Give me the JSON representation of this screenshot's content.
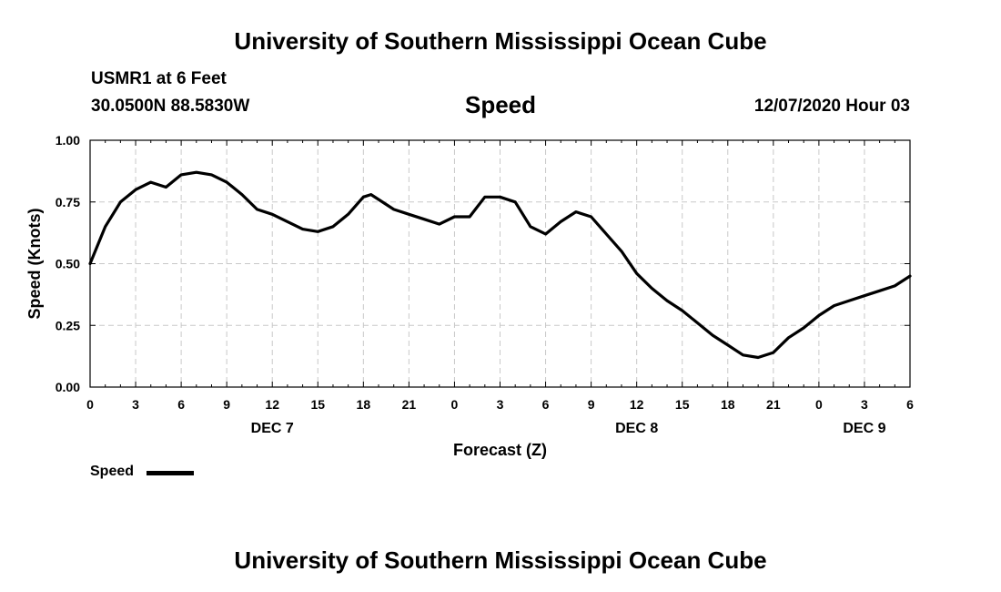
{
  "page": {
    "top_title": "University of Southern Mississippi Ocean Cube",
    "bottom_title": "University of Southern Mississippi Ocean Cube",
    "station": "USMR1 at 6 Feet",
    "coords": "30.0500N 88.5830W",
    "timestamp": "12/07/2020 Hour 03"
  },
  "chart_data": {
    "type": "line",
    "title": "Speed",
    "xlabel": "Forecast (Z)",
    "ylabel": "Speed (Knots)",
    "xlim": [
      0,
      54
    ],
    "ylim": [
      0,
      1.0
    ],
    "x_ticks": [
      0,
      3,
      6,
      9,
      12,
      15,
      18,
      21,
      24,
      27,
      30,
      33,
      36,
      39,
      42,
      45,
      48,
      51,
      54
    ],
    "x_tick_labels": [
      "0",
      "3",
      "6",
      "9",
      "12",
      "15",
      "18",
      "21",
      "0",
      "3",
      "6",
      "9",
      "12",
      "15",
      "18",
      "21",
      "0",
      "3",
      "6"
    ],
    "date_labels": [
      {
        "x": 12,
        "label": "DEC 7"
      },
      {
        "x": 36,
        "label": "DEC 8"
      },
      {
        "x": 51,
        "label": "DEC 9"
      }
    ],
    "y_ticks": [
      0,
      0.25,
      0.5,
      0.75,
      1.0
    ],
    "y_tick_labels": [
      "0.00",
      "0.25",
      "0.50",
      "0.75",
      "1.00"
    ],
    "grid": true,
    "legend_placement": "bottom-left",
    "color": "#000000",
    "series": [
      {
        "name": "Speed",
        "x": [
          0,
          1,
          2,
          3,
          4,
          5,
          6,
          7,
          8,
          9,
          10,
          11,
          12,
          13,
          14,
          15,
          16,
          17,
          18,
          18.5,
          19,
          20,
          21,
          22,
          23,
          24,
          25,
          26,
          27,
          28,
          29,
          30,
          31,
          32,
          33,
          34,
          35,
          36,
          37,
          38,
          39,
          40,
          41,
          42,
          43,
          44,
          45,
          46,
          47,
          48,
          49,
          50,
          51,
          52,
          53,
          54
        ],
        "y": [
          0.5,
          0.65,
          0.75,
          0.8,
          0.83,
          0.81,
          0.86,
          0.87,
          0.86,
          0.83,
          0.78,
          0.72,
          0.7,
          0.67,
          0.64,
          0.63,
          0.65,
          0.7,
          0.77,
          0.78,
          0.76,
          0.72,
          0.7,
          0.68,
          0.66,
          0.69,
          0.69,
          0.77,
          0.77,
          0.75,
          0.65,
          0.62,
          0.67,
          0.71,
          0.69,
          0.62,
          0.55,
          0.46,
          0.4,
          0.35,
          0.31,
          0.26,
          0.21,
          0.17,
          0.13,
          0.12,
          0.14,
          0.2,
          0.24,
          0.29,
          0.33,
          0.35,
          0.37,
          0.39,
          0.41,
          0.45
        ]
      }
    ]
  }
}
